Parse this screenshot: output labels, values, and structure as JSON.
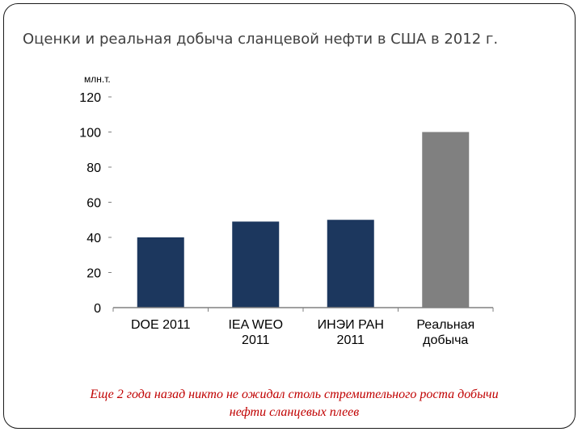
{
  "slide": {
    "title": "Оценки и реальная добыча сланцевой нефти в США в 2012 г.",
    "caption_line1": "Еще 2 года назад никто не ожидал столь стремительного роста добычи",
    "caption_line2": "нефти сланцевых плеев"
  },
  "colors": {
    "estimate_bar": "#1c375e",
    "actual_bar": "#808080",
    "caption_text": "#c00000"
  },
  "chart_data": {
    "type": "bar",
    "ylabel": "млн.т.",
    "ylim": [
      0,
      120
    ],
    "yticks": [
      "0",
      "20",
      "40",
      "60",
      "80",
      "100",
      "120"
    ],
    "categories": [
      [
        "DOE 2011"
      ],
      [
        "IEA WEO",
        "2011"
      ],
      [
        "ИНЭИ РАН",
        "2011"
      ],
      [
        "Реальная",
        "добыча"
      ]
    ],
    "values": [
      40,
      49,
      50,
      100
    ],
    "grid": false,
    "legend": "none"
  }
}
